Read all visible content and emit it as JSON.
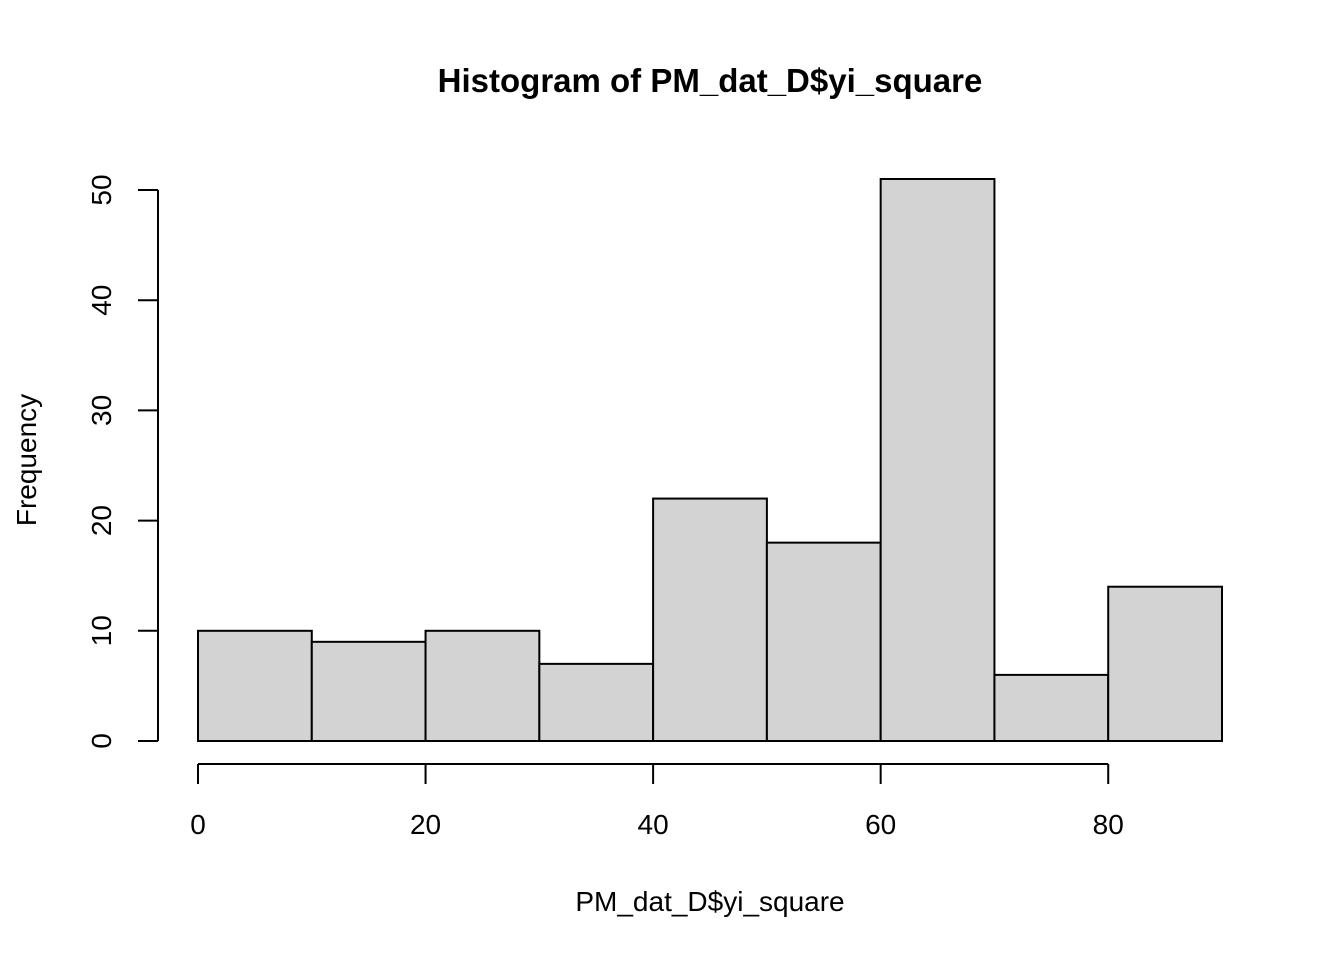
{
  "chart_data": {
    "type": "bar",
    "title": "Histogram of PM_dat_D$yi_square",
    "xlabel": "PM_dat_D$yi_square",
    "ylabel": "Frequency",
    "bin_edges": [
      0,
      10,
      20,
      30,
      40,
      50,
      60,
      70,
      80,
      90
    ],
    "values": [
      10,
      9,
      10,
      7,
      22,
      18,
      51,
      6,
      14
    ],
    "xlim": [
      0,
      90
    ],
    "ylim": [
      0,
      51
    ],
    "x_ticks": [
      0,
      20,
      40,
      60,
      80
    ],
    "y_ticks": [
      0,
      10,
      20,
      30,
      40,
      50
    ],
    "bar_color": "#d3d3d3",
    "border_color": "#000000",
    "grid": false
  }
}
